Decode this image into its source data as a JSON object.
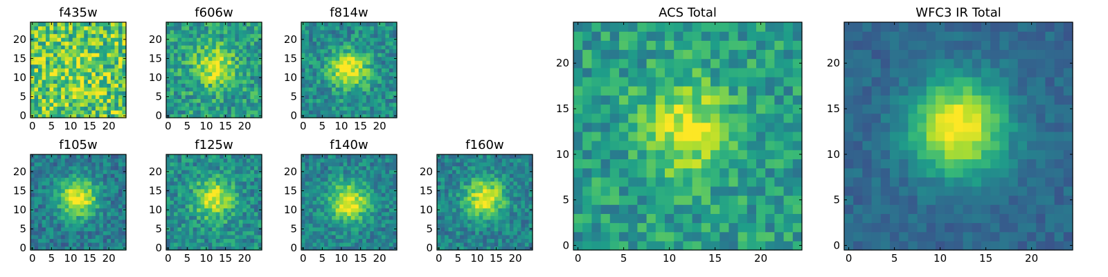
{
  "chart_data": [
    {
      "type": "heatmap",
      "title": "f435w",
      "xticks": [
        "0",
        "5",
        "10",
        "15",
        "20"
      ],
      "yticks": [
        "0",
        "5",
        "10",
        "15",
        "20"
      ],
      "grid_size": [
        25,
        25
      ],
      "xlim": [
        -0.5,
        24.5
      ],
      "ylim": [
        -0.5,
        24.5
      ],
      "colormap": "viridis",
      "peak_center": [
        12,
        12
      ],
      "peak_value": 0.15,
      "noise_level": 0.55
    },
    {
      "type": "heatmap",
      "title": "f606w",
      "xticks": [
        "0",
        "5",
        "10",
        "15",
        "20"
      ],
      "yticks": [
        "0",
        "5",
        "10",
        "15",
        "20"
      ],
      "grid_size": [
        25,
        25
      ],
      "xlim": [
        -0.5,
        24.5
      ],
      "ylim": [
        -0.5,
        24.5
      ],
      "colormap": "viridis",
      "peak_center": [
        12,
        13
      ],
      "peak_value": 0.4,
      "noise_level": 0.4
    },
    {
      "type": "heatmap",
      "title": "f814w",
      "xticks": [
        "0",
        "5",
        "10",
        "15",
        "20"
      ],
      "yticks": [
        "0",
        "5",
        "10",
        "15",
        "20"
      ],
      "grid_size": [
        25,
        25
      ],
      "xlim": [
        -0.5,
        24.5
      ],
      "ylim": [
        -0.5,
        24.5
      ],
      "colormap": "viridis",
      "peak_center": [
        12,
        12
      ],
      "peak_value": 0.5,
      "noise_level": 0.35
    },
    {
      "type": "heatmap",
      "title": "f105w",
      "xticks": [
        "0",
        "5",
        "10",
        "15",
        "20"
      ],
      "yticks": [
        "0",
        "5",
        "10",
        "15",
        "20"
      ],
      "grid_size": [
        25,
        25
      ],
      "xlim": [
        -0.5,
        24.5
      ],
      "ylim": [
        -0.5,
        24.5
      ],
      "colormap": "viridis",
      "peak_center": [
        12,
        13
      ],
      "peak_value": 0.6,
      "noise_level": 0.3
    },
    {
      "type": "heatmap",
      "title": "f125w",
      "xticks": [
        "0",
        "5",
        "10",
        "15",
        "20"
      ],
      "yticks": [
        "0",
        "5",
        "10",
        "15",
        "20"
      ],
      "grid_size": [
        25,
        25
      ],
      "xlim": [
        -0.5,
        24.5
      ],
      "ylim": [
        -0.5,
        24.5
      ],
      "colormap": "viridis",
      "peak_center": [
        12,
        13
      ],
      "peak_value": 0.5,
      "noise_level": 0.35
    },
    {
      "type": "heatmap",
      "title": "f140w",
      "xticks": [
        "0",
        "5",
        "10",
        "15",
        "20"
      ],
      "yticks": [
        "0",
        "5",
        "10",
        "15",
        "20"
      ],
      "grid_size": [
        25,
        25
      ],
      "xlim": [
        -0.5,
        24.5
      ],
      "ylim": [
        -0.5,
        24.5
      ],
      "colormap": "viridis",
      "peak_center": [
        12,
        12
      ],
      "peak_value": 0.55,
      "noise_level": 0.3
    },
    {
      "type": "heatmap",
      "title": "f160w",
      "xticks": [
        "0",
        "5",
        "10",
        "15",
        "20"
      ],
      "yticks": [
        "0",
        "5",
        "10",
        "15",
        "20"
      ],
      "grid_size": [
        25,
        25
      ],
      "xlim": [
        -0.5,
        24.5
      ],
      "ylim": [
        -0.5,
        24.5
      ],
      "colormap": "viridis",
      "peak_center": [
        12,
        13
      ],
      "peak_value": 0.55,
      "noise_level": 0.3
    },
    {
      "type": "heatmap",
      "title": "ACS Total",
      "xticks": [
        "0",
        "5",
        "10",
        "15",
        "20"
      ],
      "yticks": [
        "0",
        "5",
        "10",
        "15",
        "20"
      ],
      "grid_size": [
        25,
        25
      ],
      "xlim": [
        -0.5,
        24.5
      ],
      "ylim": [
        -0.5,
        24.5
      ],
      "colormap": "viridis",
      "peak_center": [
        12,
        13
      ],
      "peak_value": 0.4,
      "noise_level": 0.35
    },
    {
      "type": "heatmap",
      "title": "WFC3 IR Total",
      "xticks": [
        "0",
        "5",
        "10",
        "15",
        "20"
      ],
      "yticks": [
        "0",
        "5",
        "10",
        "15",
        "20"
      ],
      "grid_size": [
        25,
        25
      ],
      "xlim": [
        -0.5,
        24.5
      ],
      "ylim": [
        -0.5,
        24.5
      ],
      "colormap": "viridis",
      "peak_center": [
        12,
        13
      ],
      "peak_value": 0.7,
      "noise_level": 0.15
    }
  ]
}
